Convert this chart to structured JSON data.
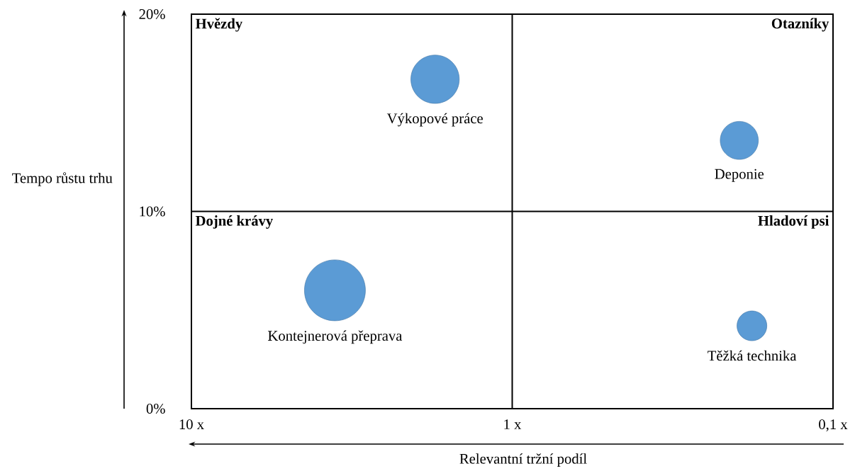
{
  "chart_data": {
    "type": "bubble",
    "xlabel": "Relevantní tržní podíl",
    "ylabel": "Tempo růstu trhu",
    "x": [
      1.74,
      0.196,
      3.57,
      0.179
    ],
    "values": [
      16.7,
      13.6,
      6.0,
      4.2
    ],
    "sizes": [
      0.63,
      0.39,
      1,
      0.24
    ],
    "color": "#5b9bd5",
    "log": "x",
    "xlim": [
      10,
      0.1
    ],
    "xticks": [
      {
        "value": 10,
        "label": "10 x"
      },
      {
        "value": 1,
        "label": "1 x"
      },
      {
        "value": 0.1,
        "label": "0,1 x"
      }
    ],
    "ylim": [
      0,
      20
    ],
    "yticks": [
      {
        "value": 0,
        "label": "0%"
      },
      {
        "value": 10,
        "label": "10%"
      },
      {
        "value": 20,
        "label": "20%"
      }
    ],
    "ref_lines": [
      {
        "axis": "x",
        "value": 1,
        "color": "#000000"
      },
      {
        "axis": "y",
        "value": 10,
        "color": "#000000"
      }
    ],
    "annotations": [
      "Výkopové práce",
      "Deponie",
      "Kontejnerová přeprava",
      "Těžká technika",
      "Hvězdy",
      "Otazníky",
      "Dojné krávy",
      "Hladoví psi"
    ]
  }
}
